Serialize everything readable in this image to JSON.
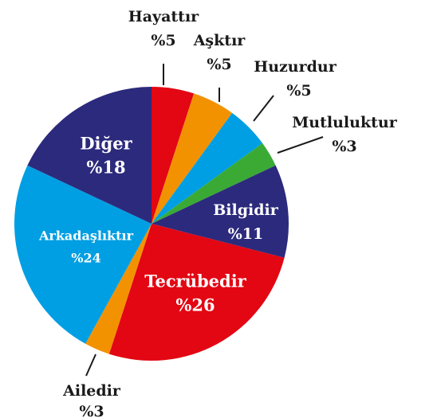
{
  "chart_data": {
    "type": "pie",
    "categories": [
      "Hayattır",
      "Aşktır",
      "Huzurdur",
      "Mutluluktur",
      "Bilgidir",
      "Tecrübedir",
      "Ailedir",
      "Arkadaşlıktır",
      "Diğer"
    ],
    "values": [
      5,
      5,
      5,
      3,
      11,
      26,
      3,
      24,
      18
    ],
    "value_labels": [
      "%5",
      "%5",
      "%5",
      "%3",
      "%11",
      "%26",
      "%3",
      "%24",
      "%18"
    ],
    "colors": [
      "#e30613",
      "#f39200",
      "#009fe3",
      "#3aaa35",
      "#2c2a7c",
      "#e30613",
      "#f39200",
      "#009fe3",
      "#2c2a7c"
    ]
  }
}
